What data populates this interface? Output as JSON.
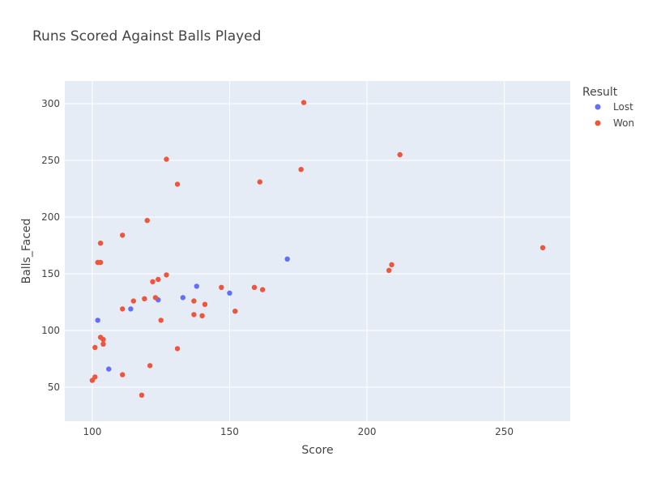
{
  "chart_data": {
    "type": "scatter",
    "title": "Runs Scored Against Balls Played",
    "xlabel": "Score",
    "ylabel": "Balls_Faced",
    "xlim": [
      90,
      274
    ],
    "ylim": [
      20,
      320
    ],
    "x_ticks": [
      100,
      150,
      200,
      250
    ],
    "y_ticks": [
      50,
      100,
      150,
      200,
      250,
      300
    ],
    "grid": true,
    "legend": {
      "title": "Result",
      "position": "top-right"
    },
    "series": [
      {
        "name": "Lost",
        "color": "#636efa",
        "points": [
          [
            102,
            109
          ],
          [
            106,
            66
          ],
          [
            114,
            119
          ],
          [
            124,
            127
          ],
          [
            133,
            129
          ],
          [
            138,
            139
          ],
          [
            150,
            133
          ],
          [
            171,
            163
          ]
        ]
      },
      {
        "name": "Won",
        "color": "#ef553b",
        "points": [
          [
            100,
            56
          ],
          [
            101,
            59
          ],
          [
            101,
            85
          ],
          [
            102,
            160
          ],
          [
            103,
            160
          ],
          [
            103,
            177
          ],
          [
            103,
            94
          ],
          [
            104,
            92
          ],
          [
            104,
            88
          ],
          [
            111,
            61
          ],
          [
            111,
            119
          ],
          [
            111,
            184
          ],
          [
            115,
            126
          ],
          [
            118,
            43
          ],
          [
            119,
            128
          ],
          [
            120,
            197
          ],
          [
            121,
            69
          ],
          [
            122,
            143
          ],
          [
            123,
            129
          ],
          [
            124,
            145
          ],
          [
            125,
            109
          ],
          [
            127,
            149
          ],
          [
            127,
            251
          ],
          [
            131,
            84
          ],
          [
            131,
            229
          ],
          [
            137,
            114
          ],
          [
            137,
            126
          ],
          [
            140,
            113
          ],
          [
            141,
            123
          ],
          [
            147,
            138
          ],
          [
            152,
            117
          ],
          [
            159,
            138
          ],
          [
            161,
            231
          ],
          [
            162,
            136
          ],
          [
            176,
            242
          ],
          [
            177,
            301
          ],
          [
            208,
            153
          ],
          [
            209,
            158
          ],
          [
            212,
            255
          ],
          [
            264,
            173
          ]
        ]
      }
    ]
  }
}
